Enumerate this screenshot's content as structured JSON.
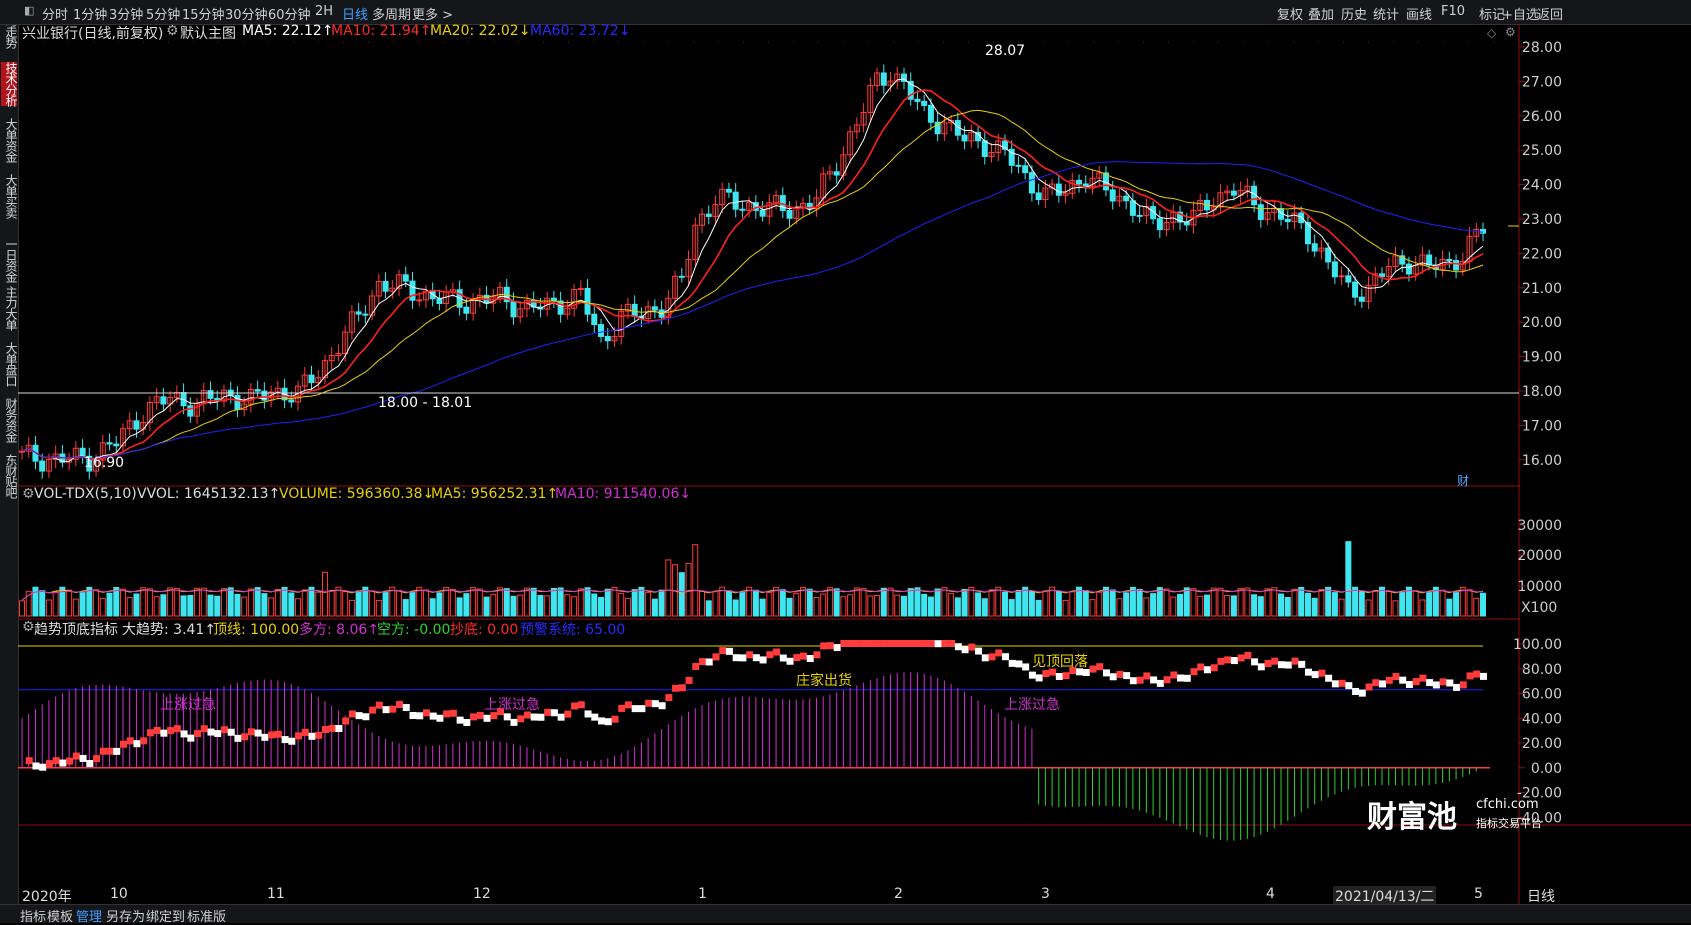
{
  "topbar": {
    "left_items": [
      {
        "label": "分时",
        "active": false
      },
      {
        "label": "1分钟",
        "active": false
      },
      {
        "label": "3分钟",
        "active": false
      },
      {
        "label": "5分钟",
        "active": false
      },
      {
        "label": "15分钟",
        "active": false
      },
      {
        "label": "30分钟",
        "active": false
      },
      {
        "label": "60分钟",
        "active": false
      },
      {
        "label": "2H",
        "active": false
      },
      {
        "label": "日线",
        "active": true
      },
      {
        "label": "多周期",
        "active": false
      },
      {
        "label": "更多",
        "active": false
      }
    ],
    "right_items": [
      "复权",
      "叠加",
      "历史",
      "统计",
      "画线",
      "F10",
      "+自选",
      "返回"
    ],
    "mark_label": "标记"
  },
  "sidebar": {
    "items": [
      {
        "label": "分时走势",
        "active": false
      },
      {
        "label": "技术分析",
        "active": true
      },
      {
        "label": "大单资金",
        "active": false
      },
      {
        "label": "大单买卖",
        "active": false
      },
      {
        "label": "一日资金",
        "active": false
      },
      {
        "label": "主力大单",
        "active": false
      },
      {
        "label": "大单盘口",
        "active": false
      },
      {
        "label": "财务资金",
        "active": false
      },
      {
        "label": "东财贴吧",
        "active": false
      }
    ]
  },
  "price_panel": {
    "stock": "兴业银行(日线,前复权)",
    "main_label": "默认主图",
    "ma5": "MA5: 22.12↑",
    "ma10": "MA10: 21.94↑",
    "ma20": "MA20: 22.02↓",
    "ma60": "MA60: 23.72↓",
    "high_label": "28.07",
    "low_label": "16.90",
    "hline_label": "18.00 - 18.01",
    "fin_badge": "财",
    "axis": [
      "28.00",
      "27.00",
      "26.00",
      "25.00",
      "24.00",
      "23.00",
      "22.00",
      "21.00",
      "20.00",
      "19.00",
      "18.00",
      "17.00",
      "16.00"
    ]
  },
  "volume_panel": {
    "name": "VOL-TDX(5,10)",
    "vvol": "VVOL: 1645132.13↑",
    "volume": "VOLUME: 596360.38↓",
    "ma5": "MA5: 956252.31↑",
    "ma10": "MA10: 911540.06↓",
    "axis": [
      "30000",
      "20000",
      "10000"
    ],
    "unit": "X100"
  },
  "indicator_panel": {
    "name": "趋势顶底指标",
    "trend": "大趋势: 3.41↑",
    "top": "顶线: 100.00",
    "long": "多方: 8.06↑",
    "short": "空方: -0.00",
    "bottom": "抄底: 0.00",
    "warn": "预警系统: 65.00",
    "axis": [
      "100.00",
      "80.00",
      "60.00",
      "40.00",
      "20.00",
      "0.00",
      "-20.00",
      "-40.00"
    ],
    "annotations": [
      "上涨过急",
      "上涨过急",
      "庄家出货",
      "上涨过急",
      "见顶回落"
    ]
  },
  "date_axis": [
    "2020年",
    "10",
    "11",
    "12",
    "1",
    "2",
    "3",
    "4",
    "2021/04/13/二",
    "5"
  ],
  "period_label": "日线",
  "bottombar": {
    "items": [
      {
        "label": "指标",
        "active": false
      },
      {
        "label": "模板",
        "active": false
      },
      {
        "label": "管理",
        "active": true
      },
      {
        "label": "另存为",
        "active": false
      },
      {
        "label": "绑定到",
        "active": false
      },
      {
        "label": "标准版",
        "active": false
      }
    ]
  },
  "watermark": {
    "brand": "财富池",
    "site": "cfchi.com",
    "slogan": "指标交易平台"
  },
  "colors": {
    "up": "#ff3b3b",
    "down": "#3fe6f0",
    "ma5": "#ffffff",
    "ma10": "#ff2020",
    "ma20": "#e8d000",
    "ma60": "#2020ff",
    "purple": "#d030d0",
    "green": "#30d030"
  }
}
